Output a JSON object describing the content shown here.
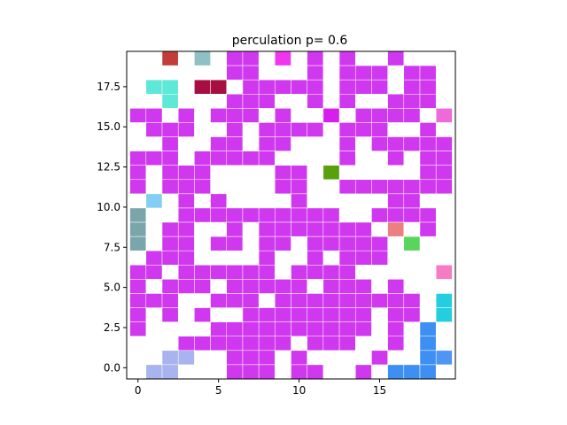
{
  "chart_data": {
    "type": "heatmap",
    "title": "perculation p= 0.6",
    "xlabel": "",
    "ylabel": "",
    "xlim": [
      -0.7,
      19.7
    ],
    "ylim": [
      -0.7,
      19.7
    ],
    "xticks": [
      0,
      5,
      10,
      15
    ],
    "xtick_labels": [
      "0",
      "5",
      "10",
      "15"
    ],
    "yticks": [
      0,
      2.5,
      5,
      7.5,
      10,
      12.5,
      15,
      17.5
    ],
    "ytick_labels": [
      "0.0",
      "2.5",
      "5.0",
      "7.5",
      "10.0",
      "12.5",
      "15.0",
      "17.5"
    ],
    "grid": false,
    "background": "#ffffff",
    "palette": {
      "A": "#cf38ef",
      "B": "#c23c38",
      "C": "#8ec1c4",
      "D": "#f035ee",
      "E": "#5ee8d8",
      "F": "#a70f43",
      "G": "#d61fee",
      "H": "#ee6adb",
      "I": "#58a00e",
      "J": "#85cef3",
      "K": "#7aa6ab",
      "L": "#ec8080",
      "M": "#5ad55c",
      "N": "#f57cc4",
      "O": "#22cee0",
      "P": "#a8b3f0",
      "Q": "#3e8ff3",
      "R": "#4f95f5"
    },
    "grid_rows_top_to_bottom": [
      "..B.C.AA.D.A.A..A...",
      "......AA...A.AAA.AA.",
      ".EE.FF.AAAAA.AAA.AA.",
      "..E...AAA..A.A..AAA.",
      "AA.A.AAA.A..G.AAAA.H",
      ".AAA..A.AAAA.AAA..A.",
      "..A..AA.AA...A.AAAAA",
      "AAA.AAAAA....A..A.AA",
      "A.AAA....AA.I.....AA",
      "A.AAA....AA..AAAAAAA",
      ".J.A.A....A.....AA..",
      "K..AAAAAAAAAA..AAAA.",
      "K.AA..A.AAAAAAA.L.A.",
      "K.AA.AA.AA.AAAAA.M..",
      ".AAA....A..A.AAA....",
      "AA.AAAAAA.AAAA.....N",
      "A.AAA.AAAAA.AAA.A...",
      "AAA..AAA.AAAAAAAAA.O",
      "A.A.A..AAAAAAAA.AA.O",
      "A....AAAAAAAAAA.A.Q.",
      "...AAAAAAA.AAA..A.Q.",
      "..PP..AAA.A....A..QR",
      ".PP...AAA.AA..A.QQQ."
    ]
  }
}
